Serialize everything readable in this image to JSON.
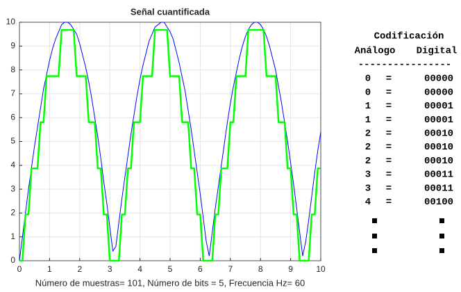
{
  "chart_data": {
    "type": "line",
    "title": "Señal cuantificada",
    "xlabel": "Número de muestras= 101, Número de bits = 5, Frecuencia Hz= 60",
    "x": [
      0,
      0.1,
      0.2,
      0.3,
      0.4,
      0.5,
      0.6,
      0.7,
      0.8,
      0.9,
      1,
      1.1,
      1.2,
      1.3,
      1.4,
      1.5,
      1.6,
      1.7,
      1.8,
      1.9,
      2,
      2.1,
      2.2,
      2.3,
      2.4,
      2.5,
      2.6,
      2.7,
      2.8,
      2.9,
      3,
      3.1,
      3.2,
      3.3,
      3.4,
      3.5,
      3.6,
      3.7,
      3.8,
      3.9,
      4,
      4.1,
      4.2,
      4.3,
      4.4,
      4.5,
      4.6,
      4.7,
      4.8,
      4.9,
      5,
      5.1,
      5.2,
      5.3,
      5.4,
      5.5,
      5.6,
      5.7,
      5.8,
      5.9,
      6,
      6.1,
      6.2,
      6.3,
      6.4,
      6.5,
      6.6,
      6.7,
      6.8,
      6.9,
      7,
      7.1,
      7.2,
      7.3,
      7.4,
      7.5,
      7.6,
      7.7,
      7.8,
      7.9,
      8,
      8.1,
      8.2,
      8.3,
      8.4,
      8.5,
      8.6,
      8.7,
      8.8,
      8.9,
      9,
      9.1,
      9.2,
      9.3,
      9.4,
      9.5,
      9.6,
      9.7,
      9.8,
      9.9,
      10
    ],
    "series": [
      {
        "color": "#0000ff",
        "values": [
          0,
          1,
          2,
          3,
          3.9,
          4.8,
          5.6,
          6.4,
          7.2,
          7.8,
          8.4,
          8.9,
          9.3,
          9.6,
          9.9,
          10,
          10,
          9.9,
          9.7,
          9.5,
          9.1,
          8.6,
          8.1,
          7.5,
          6.8,
          6,
          5.2,
          4.3,
          3.3,
          2.4,
          1.4,
          0.4,
          0.6,
          1.6,
          2.6,
          3.5,
          4.4,
          5.3,
          6.1,
          6.9,
          7.6,
          8.2,
          8.7,
          9.2,
          9.5,
          9.8,
          9.9,
          10,
          10,
          9.8,
          9.6,
          9.3,
          8.8,
          8.3,
          7.7,
          7.1,
          6.3,
          5.5,
          4.6,
          3.7,
          2.8,
          1.8,
          0.8,
          0.2,
          1.2,
          2.2,
          3.1,
          4,
          4.9,
          5.8,
          6.6,
          7.3,
          7.9,
          8.5,
          9,
          9.4,
          9.7,
          9.9,
          10,
          10,
          9.9,
          9.7,
          9.4,
          9,
          8.5,
          8,
          7.3,
          6.6,
          5.8,
          5,
          4.1,
          3.2,
          2.2,
          1.2,
          0.2,
          0.8,
          1.7,
          2.7,
          3.7,
          4.6,
          5.4
        ]
      },
      {
        "color": "#00ff00",
        "values": [
          0,
          0,
          1.94,
          1.94,
          3.87,
          3.87,
          3.87,
          5.81,
          5.81,
          7.74,
          7.74,
          7.74,
          7.74,
          7.74,
          9.68,
          9.68,
          9.68,
          9.68,
          9.68,
          7.74,
          7.74,
          7.74,
          7.74,
          5.81,
          5.81,
          5.81,
          3.87,
          3.87,
          1.94,
          1.94,
          0,
          0,
          0,
          0,
          1.94,
          1.94,
          3.87,
          3.87,
          5.81,
          5.81,
          5.81,
          7.74,
          7.74,
          7.74,
          7.74,
          9.68,
          9.68,
          9.68,
          9.68,
          9.68,
          7.74,
          7.74,
          7.74,
          7.74,
          5.81,
          5.81,
          5.81,
          3.87,
          3.87,
          1.94,
          1.94,
          0,
          0,
          0,
          0,
          1.94,
          1.94,
          3.87,
          3.87,
          3.87,
          5.81,
          5.81,
          7.74,
          7.74,
          7.74,
          7.74,
          9.68,
          9.68,
          9.68,
          9.68,
          9.68,
          9.68,
          7.74,
          7.74,
          7.74,
          7.74,
          5.81,
          5.81,
          5.81,
          3.87,
          3.87,
          1.94,
          1.94,
          0,
          0,
          0,
          0,
          1.94,
          1.94,
          3.87,
          3.87
        ]
      }
    ],
    "xlim": [
      0,
      10
    ],
    "xticks": [
      0,
      1,
      2,
      3,
      4,
      5,
      6,
      7,
      8,
      9,
      10
    ],
    "ylim": [
      0,
      10
    ],
    "yticks": [
      0,
      1,
      2,
      3,
      4,
      5,
      6,
      7,
      8,
      9,
      10
    ],
    "grid": true
  },
  "codification": {
    "title": "Codificación",
    "headers": [
      "Análogo",
      "Digital"
    ],
    "rule": "----------------",
    "separator": "=",
    "rows": [
      [
        0,
        "00000"
      ],
      [
        0,
        "00000"
      ],
      [
        1,
        "00001"
      ],
      [
        1,
        "00001"
      ],
      [
        2,
        "00010"
      ],
      [
        2,
        "00010"
      ],
      [
        2,
        "00010"
      ],
      [
        3,
        "00011"
      ],
      [
        3,
        "00011"
      ],
      [
        4,
        "00100"
      ]
    ]
  }
}
